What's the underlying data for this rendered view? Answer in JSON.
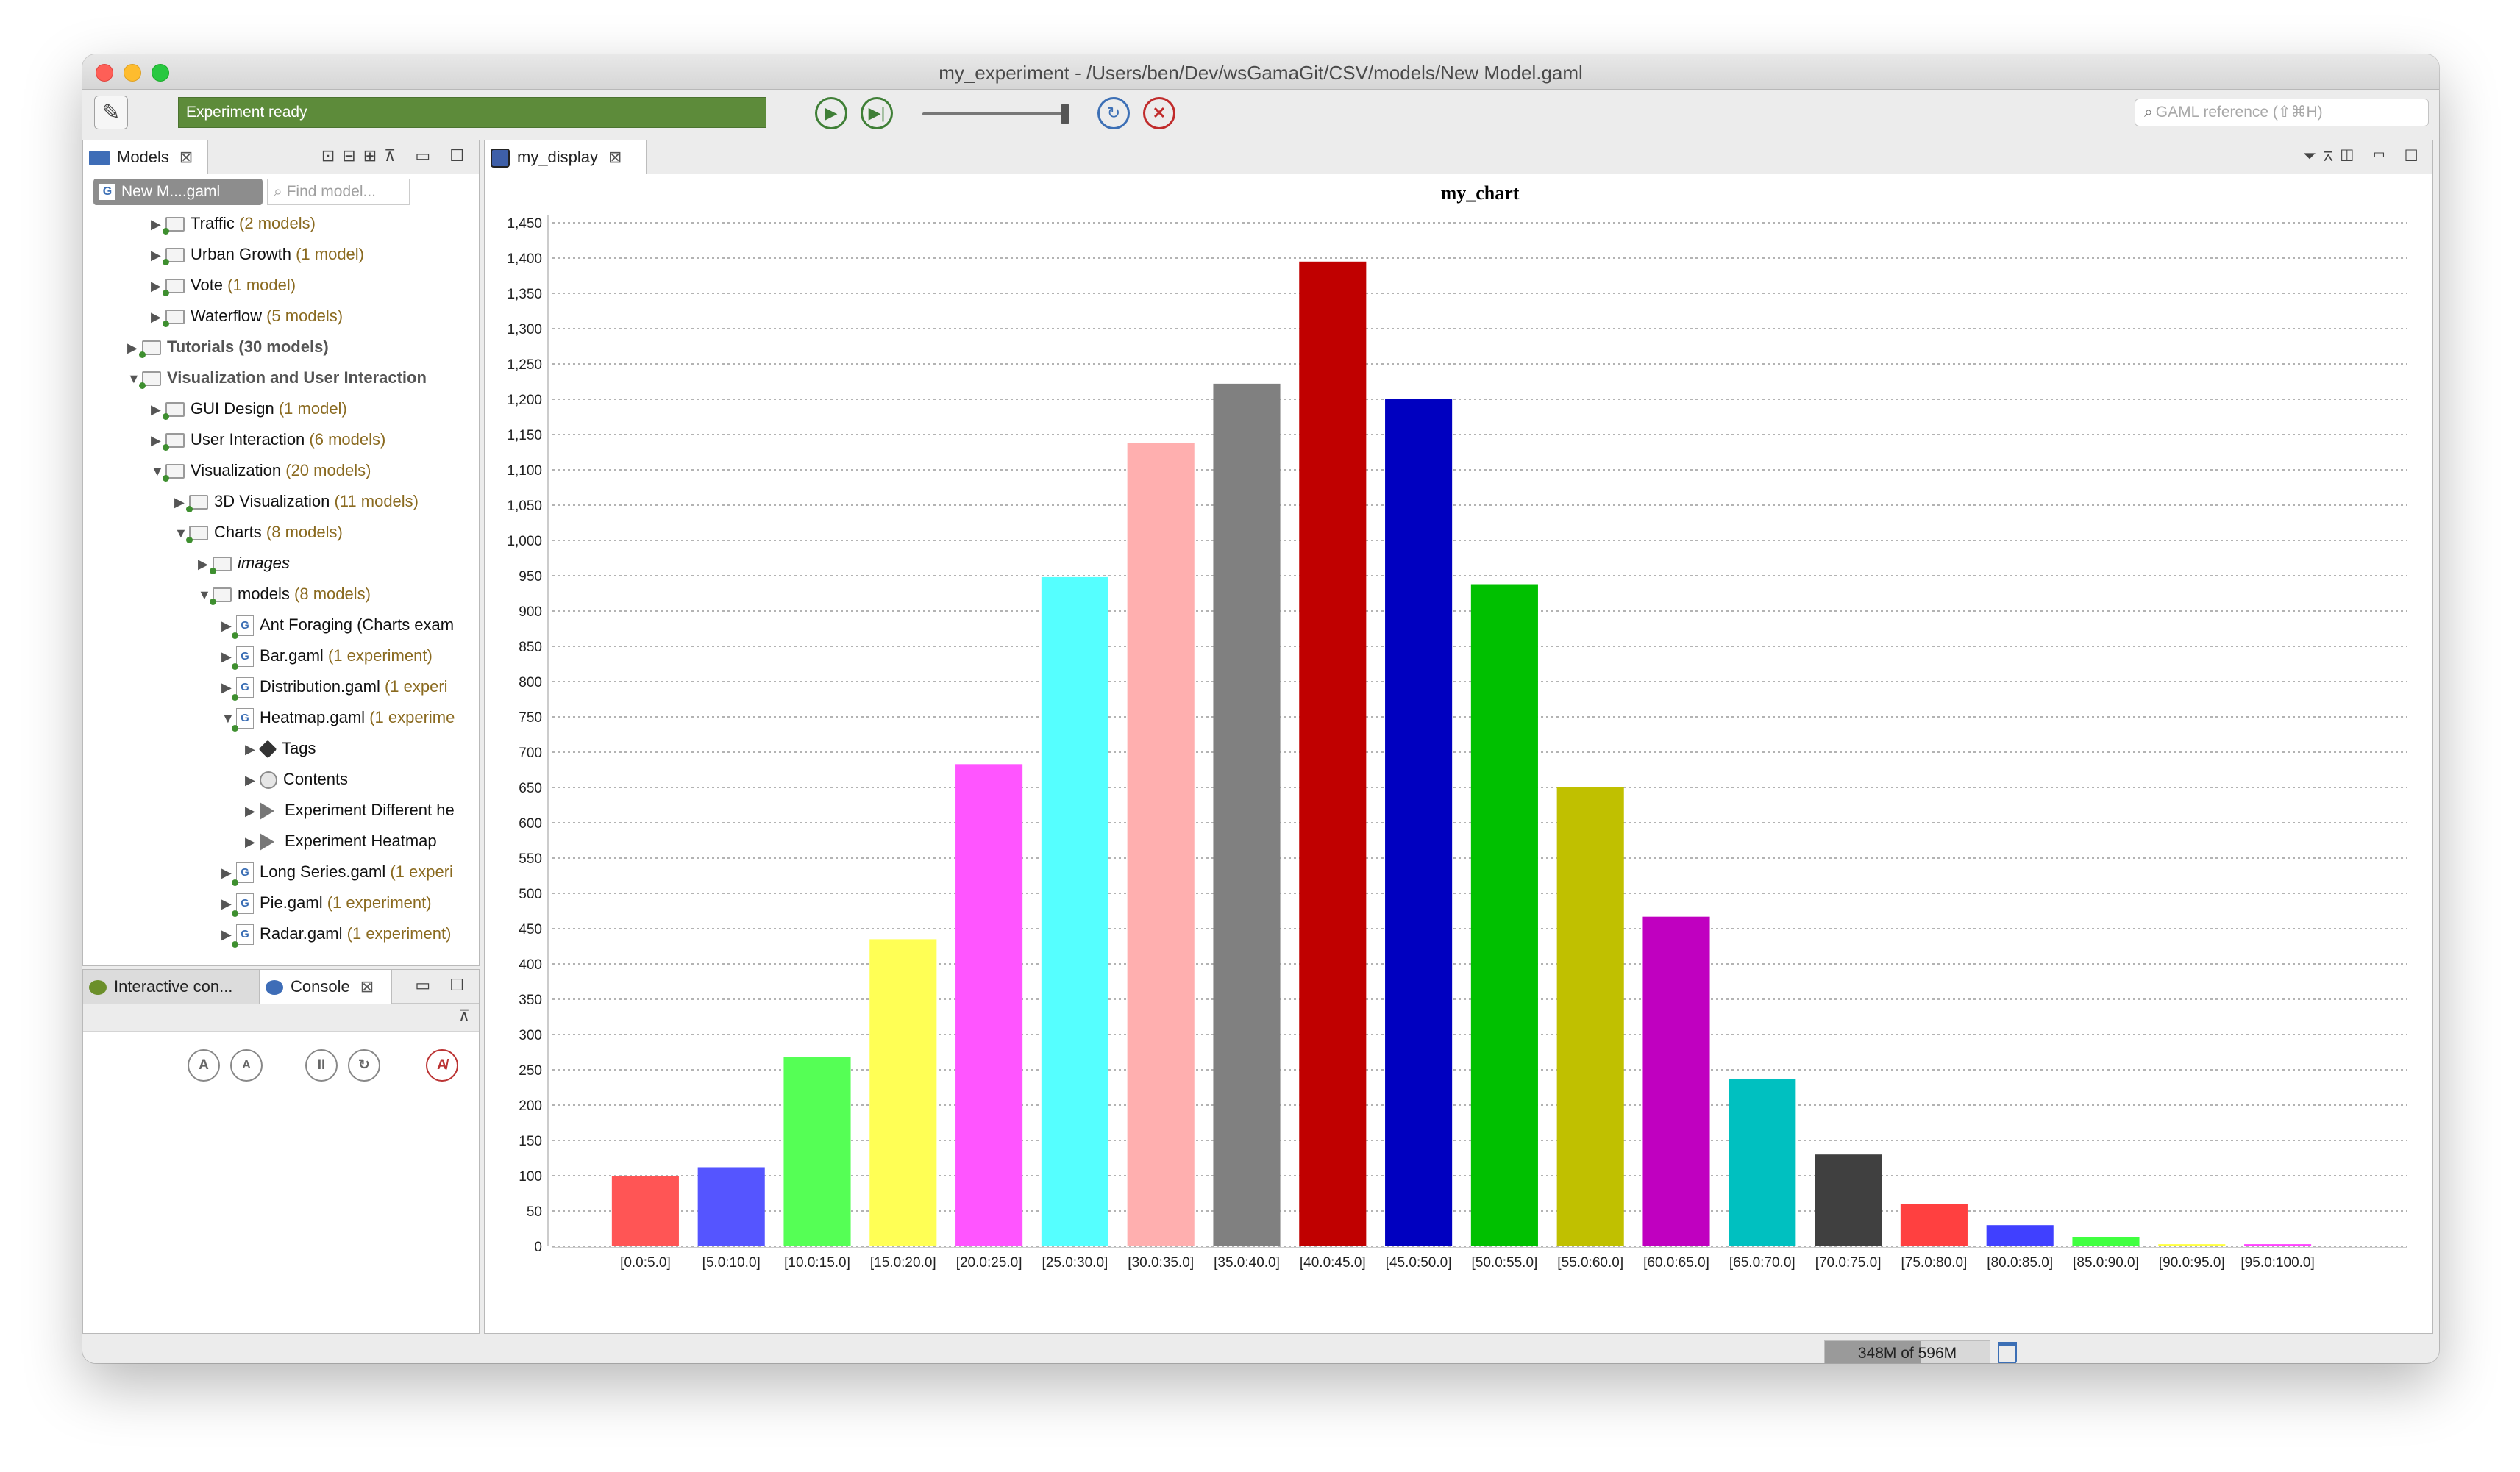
{
  "window": {
    "title": "my_experiment - /Users/ben/Dev/wsGamaGit/CSV/models/New Model.gaml"
  },
  "toolbar": {
    "status": "Experiment ready",
    "search_placeholder": "GAML reference (⇧⌘H)",
    "icons": [
      "edit-icon",
      "play-icon",
      "step-icon",
      "reload-icon",
      "close-icon",
      "search-icon"
    ]
  },
  "models_panel": {
    "tab_label": "Models",
    "selector_label": "New M....gaml",
    "find_placeholder": "Find model...",
    "tree": [
      {
        "name": "Traffic",
        "count": "(2 models)",
        "icon": "folder"
      },
      {
        "name": "Urban Growth",
        "count": "(1 model)",
        "icon": "folder"
      },
      {
        "name": "Vote",
        "count": "(1 model)",
        "icon": "folder"
      },
      {
        "name": "Waterflow",
        "count": "(5 models)",
        "icon": "folder"
      },
      {
        "name": "Tutorials",
        "count": "(30 models)",
        "icon": "folder"
      },
      {
        "name": "Visualization and User Interaction",
        "count": "",
        "icon": "folder"
      },
      {
        "name": "GUI Design",
        "count": "(1 model)",
        "icon": "folder"
      },
      {
        "name": "User Interaction",
        "count": "(6 models)",
        "icon": "folder"
      },
      {
        "name": "Visualization",
        "count": "(20 models)",
        "icon": "folder"
      },
      {
        "name": "3D Visualization",
        "count": "(11 models)",
        "icon": "folder"
      },
      {
        "name": "Charts",
        "count": "(8 models)",
        "icon": "folder"
      },
      {
        "name": "images",
        "count": "",
        "icon": "folder"
      },
      {
        "name": "models",
        "count": "(8 models)",
        "icon": "folder"
      },
      {
        "name": "Ant Foraging (Charts exam",
        "count": "",
        "icon": "gaml"
      },
      {
        "name": "Bar.gaml",
        "count": "(1 experiment)",
        "icon": "gaml"
      },
      {
        "name": "Distribution.gaml",
        "count": "(1 experi",
        "icon": "gaml"
      },
      {
        "name": "Heatmap.gaml",
        "count": "(1 experime",
        "icon": "gaml"
      },
      {
        "name": "Tags",
        "count": "",
        "icon": "tag"
      },
      {
        "name": "Contents",
        "count": "",
        "icon": "globe"
      },
      {
        "name": "Experiment Different he",
        "count": "",
        "icon": "play"
      },
      {
        "name": "Experiment Heatmap",
        "count": "",
        "icon": "play"
      },
      {
        "name": "Long Series.gaml",
        "count": "(1 experi",
        "icon": "gaml"
      },
      {
        "name": "Pie.gaml",
        "count": "(1 experiment)",
        "icon": "gaml"
      },
      {
        "name": "Radar.gaml",
        "count": "(1 experiment)",
        "icon": "gaml"
      }
    ]
  },
  "console_panel": {
    "tab1_label": "Interactive con...",
    "tab2_label": "Console"
  },
  "display_panel": {
    "tab_label": "my_display"
  },
  "status_bar": {
    "memory": "348M of 596M",
    "memory_fraction": 0.58
  },
  "colors": {
    "status_green": "#5d8b3a",
    "accent_blue": "#3c6fb5"
  },
  "chart_data": {
    "type": "bar",
    "title": "my_chart",
    "categories": [
      "[0.0:5.0]",
      "[5.0:10.0]",
      "[10.0:15.0]",
      "[15.0:20.0]",
      "[20.0:25.0]",
      "[25.0:30.0]",
      "[30.0:35.0]",
      "[35.0:40.0]",
      "[40.0:45.0]",
      "[45.0:50.0]",
      "[50.0:55.0]",
      "[55.0:60.0]",
      "[60.0:65.0]",
      "[65.0:70.0]",
      "[70.0:75.0]",
      "[75.0:80.0]",
      "[80.0:85.0]",
      "[85.0:90.0]",
      "[90.0:95.0]",
      "[95.0:100.0]"
    ],
    "values": [
      100,
      112,
      268,
      435,
      683,
      948,
      1138,
      1222,
      1395,
      1201,
      938,
      650,
      467,
      237,
      130,
      60,
      30,
      13,
      3,
      3
    ],
    "colors": [
      "#ff5555",
      "#5555ff",
      "#55ff55",
      "#ffff55",
      "#ff55ff",
      "#55ffff",
      "#ffafaf",
      "#808080",
      "#c00000",
      "#0000c0",
      "#00c000",
      "#c0c000",
      "#c000c0",
      "#00c0c0",
      "#404040",
      "#ff4040",
      "#4040ff",
      "#40ff40",
      "#ffff40",
      "#ff40ff"
    ],
    "ylim": [
      0,
      1450
    ],
    "ytick_step": 50,
    "grid": true,
    "xlabel": "",
    "ylabel": ""
  }
}
